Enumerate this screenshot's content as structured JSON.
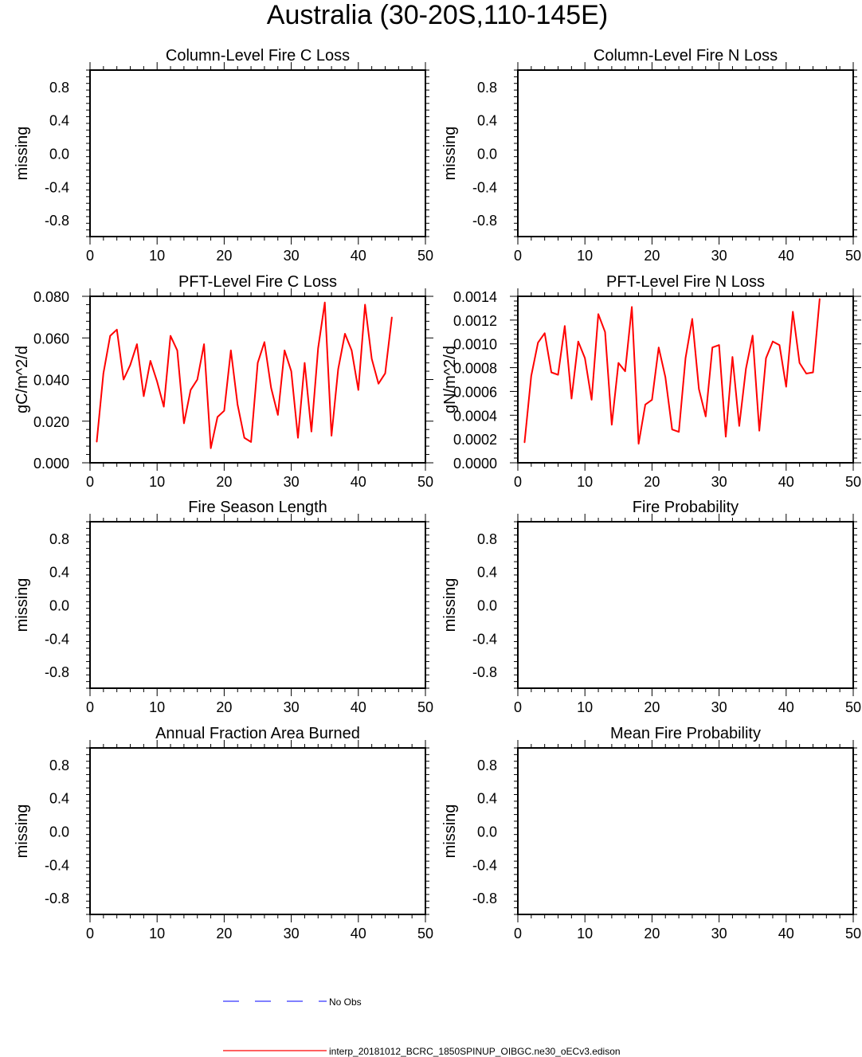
{
  "title": "Australia (30-20S,110-145E)",
  "colors": {
    "model_line": "#ff0000",
    "obs_line": "#0000ff",
    "axes": "#000000"
  },
  "legend": {
    "obs_label": "No Obs",
    "model_label": "interp_20181012_BCRC_1850SPINUP_OIBGC.ne30_oECv3.edison"
  },
  "chart_data": [
    {
      "type": "line",
      "title": "Column-Level Fire C Loss",
      "ylabel": "missing",
      "xlim": [
        0,
        50
      ],
      "ylim": [
        -1,
        1
      ],
      "xticks": [
        "0",
        "10",
        "20",
        "30",
        "40",
        "50"
      ],
      "yticks": [
        {
          "v": 0.8,
          "t": "0.8"
        },
        {
          "v": 0.4,
          "t": "0.4"
        },
        {
          "v": 0.0,
          "t": "0.0"
        },
        {
          "v": -0.4,
          "t": "-0.4"
        },
        {
          "v": -0.8,
          "t": "-0.8"
        }
      ],
      "series": []
    },
    {
      "type": "line",
      "title": "Column-Level Fire N Loss",
      "ylabel": "missing",
      "xlim": [
        0,
        50
      ],
      "ylim": [
        -1,
        1
      ],
      "xticks": [
        "0",
        "10",
        "20",
        "30",
        "40",
        "50"
      ],
      "yticks": [
        {
          "v": 0.8,
          "t": "0.8"
        },
        {
          "v": 0.4,
          "t": "0.4"
        },
        {
          "v": 0.0,
          "t": "0.0"
        },
        {
          "v": -0.4,
          "t": "-0.4"
        },
        {
          "v": -0.8,
          "t": "-0.8"
        }
      ],
      "series": []
    },
    {
      "type": "line",
      "title": "PFT-Level Fire C Loss",
      "ylabel": "gC/m^2/d",
      "xlim": [
        0,
        50
      ],
      "ylim": [
        0,
        0.08
      ],
      "xticks": [
        "0",
        "10",
        "20",
        "30",
        "40",
        "50"
      ],
      "yticks": [
        {
          "v": 0.08,
          "t": "0.080"
        },
        {
          "v": 0.06,
          "t": "0.060"
        },
        {
          "v": 0.04,
          "t": "0.040"
        },
        {
          "v": 0.02,
          "t": "0.020"
        },
        {
          "v": 0.0,
          "t": "0.000"
        }
      ],
      "series": [
        {
          "x": [
            1,
            2,
            3,
            4,
            5,
            6,
            7,
            8,
            9,
            10,
            11,
            12,
            13,
            14,
            15,
            16,
            17,
            18,
            19,
            20,
            21,
            22,
            23,
            24,
            25,
            26,
            27,
            28,
            29,
            30,
            31,
            32,
            33,
            34,
            35,
            36,
            37,
            38,
            39,
            40,
            41,
            42,
            43,
            44,
            45
          ],
          "values": [
            0.01,
            0.043,
            0.061,
            0.064,
            0.04,
            0.047,
            0.057,
            0.032,
            0.049,
            0.039,
            0.027,
            0.061,
            0.054,
            0.019,
            0.035,
            0.04,
            0.057,
            0.007,
            0.022,
            0.025,
            0.054,
            0.028,
            0.012,
            0.01,
            0.048,
            0.058,
            0.036,
            0.023,
            0.054,
            0.044,
            0.012,
            0.048,
            0.015,
            0.055,
            0.077,
            0.013,
            0.045,
            0.062,
            0.054,
            0.035,
            0.076,
            0.05,
            0.038,
            0.043,
            0.07
          ]
        }
      ]
    },
    {
      "type": "line",
      "title": "PFT-Level Fire N Loss",
      "ylabel": "gN/m^2/d",
      "xlim": [
        0,
        50
      ],
      "ylim": [
        0,
        0.0014
      ],
      "xticks": [
        "0",
        "10",
        "20",
        "30",
        "40",
        "50"
      ],
      "yticks": [
        {
          "v": 0.0014,
          "t": "0.0014"
        },
        {
          "v": 0.0012,
          "t": "0.0012"
        },
        {
          "v": 0.001,
          "t": "0.0010"
        },
        {
          "v": 0.0008,
          "t": "0.0008"
        },
        {
          "v": 0.0006,
          "t": "0.0006"
        },
        {
          "v": 0.0004,
          "t": "0.0004"
        },
        {
          "v": 0.0002,
          "t": "0.0002"
        },
        {
          "v": 0.0,
          "t": "0.0000"
        }
      ],
      "series": [
        {
          "x": [
            1,
            2,
            3,
            4,
            5,
            6,
            7,
            8,
            9,
            10,
            11,
            12,
            13,
            14,
            15,
            16,
            17,
            18,
            19,
            20,
            21,
            22,
            23,
            24,
            25,
            26,
            27,
            28,
            29,
            30,
            31,
            32,
            33,
            34,
            35,
            36,
            37,
            38,
            39,
            40,
            41,
            42,
            43,
            44,
            45
          ],
          "values": [
            0.00017,
            0.00073,
            0.00101,
            0.00109,
            0.00076,
            0.00074,
            0.00115,
            0.00054,
            0.00102,
            0.00088,
            0.00053,
            0.00125,
            0.0011,
            0.00032,
            0.00084,
            0.00077,
            0.00131,
            0.00016,
            0.00049,
            0.00053,
            0.00097,
            0.00072,
            0.00028,
            0.00026,
            0.00088,
            0.00121,
            0.00062,
            0.00039,
            0.00097,
            0.00099,
            0.00022,
            0.00089,
            0.00031,
            0.00079,
            0.00107,
            0.00027,
            0.00088,
            0.00102,
            0.00099,
            0.00064,
            0.00127,
            0.00084,
            0.00075,
            0.00076,
            0.00138
          ]
        }
      ]
    },
    {
      "type": "line",
      "title": "Fire Season Length",
      "ylabel": "missing",
      "xlim": [
        0,
        50
      ],
      "ylim": [
        -1,
        1
      ],
      "xticks": [
        "0",
        "10",
        "20",
        "30",
        "40",
        "50"
      ],
      "yticks": [
        {
          "v": 0.8,
          "t": "0.8"
        },
        {
          "v": 0.4,
          "t": "0.4"
        },
        {
          "v": 0.0,
          "t": "0.0"
        },
        {
          "v": -0.4,
          "t": "-0.4"
        },
        {
          "v": -0.8,
          "t": "-0.8"
        }
      ],
      "series": []
    },
    {
      "type": "line",
      "title": "Fire Probability",
      "ylabel": "missing",
      "xlim": [
        0,
        50
      ],
      "ylim": [
        -1,
        1
      ],
      "xticks": [
        "0",
        "10",
        "20",
        "30",
        "40",
        "50"
      ],
      "yticks": [
        {
          "v": 0.8,
          "t": "0.8"
        },
        {
          "v": 0.4,
          "t": "0.4"
        },
        {
          "v": 0.0,
          "t": "0.0"
        },
        {
          "v": -0.4,
          "t": "-0.4"
        },
        {
          "v": -0.8,
          "t": "-0.8"
        }
      ],
      "series": []
    },
    {
      "type": "line",
      "title": "Annual Fraction Area Burned",
      "ylabel": "missing",
      "xlim": [
        0,
        50
      ],
      "ylim": [
        -1,
        1
      ],
      "xticks": [
        "0",
        "10",
        "20",
        "30",
        "40",
        "50"
      ],
      "yticks": [
        {
          "v": 0.8,
          "t": "0.8"
        },
        {
          "v": 0.4,
          "t": "0.4"
        },
        {
          "v": 0.0,
          "t": "0.0"
        },
        {
          "v": -0.4,
          "t": "-0.4"
        },
        {
          "v": -0.8,
          "t": "-0.8"
        }
      ],
      "series": []
    },
    {
      "type": "line",
      "title": "Mean Fire Probability",
      "ylabel": "missing",
      "xlim": [
        0,
        50
      ],
      "ylim": [
        -1,
        1
      ],
      "xticks": [
        "0",
        "10",
        "20",
        "30",
        "40",
        "50"
      ],
      "yticks": [
        {
          "v": 0.8,
          "t": "0.8"
        },
        {
          "v": 0.4,
          "t": "0.4"
        },
        {
          "v": 0.0,
          "t": "0.0"
        },
        {
          "v": -0.4,
          "t": "-0.4"
        },
        {
          "v": -0.8,
          "t": "-0.8"
        }
      ],
      "series": []
    }
  ]
}
